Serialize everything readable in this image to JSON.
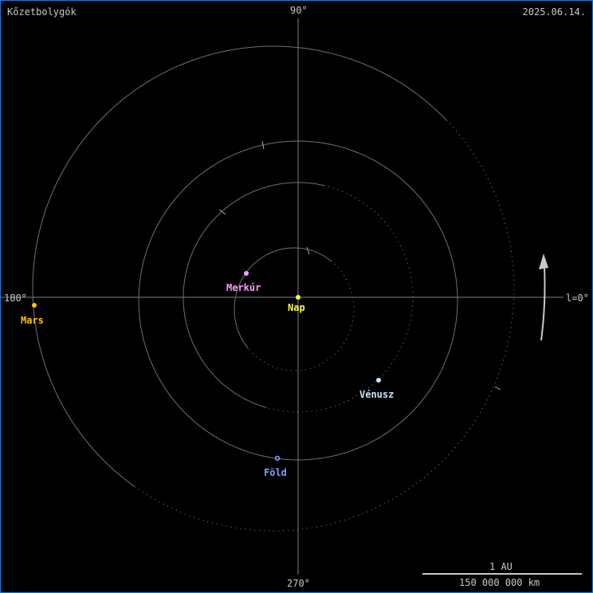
{
  "title": "Kőzetbolygók",
  "date": "2025.06.14.",
  "axes": {
    "top": "90°",
    "bottom": "270°",
    "left": "180°",
    "right": "l=0°"
  },
  "scale": {
    "label_top": "1 AU",
    "label_bottom": "150 000 000 km"
  },
  "bodies": {
    "sun": {
      "name": "Nap",
      "color": "#ffff40"
    },
    "mercury": {
      "name": "Merkúr",
      "color": "#ff9cff"
    },
    "venus": {
      "name": "Vénusz",
      "color": "#c8e4ff"
    },
    "earth": {
      "name": "Föld",
      "color": "#7fa0ff"
    },
    "mars": {
      "name": "Mars",
      "color": "#ffc400"
    }
  },
  "direction_icon": "counterclockwise-arrow-icon"
}
